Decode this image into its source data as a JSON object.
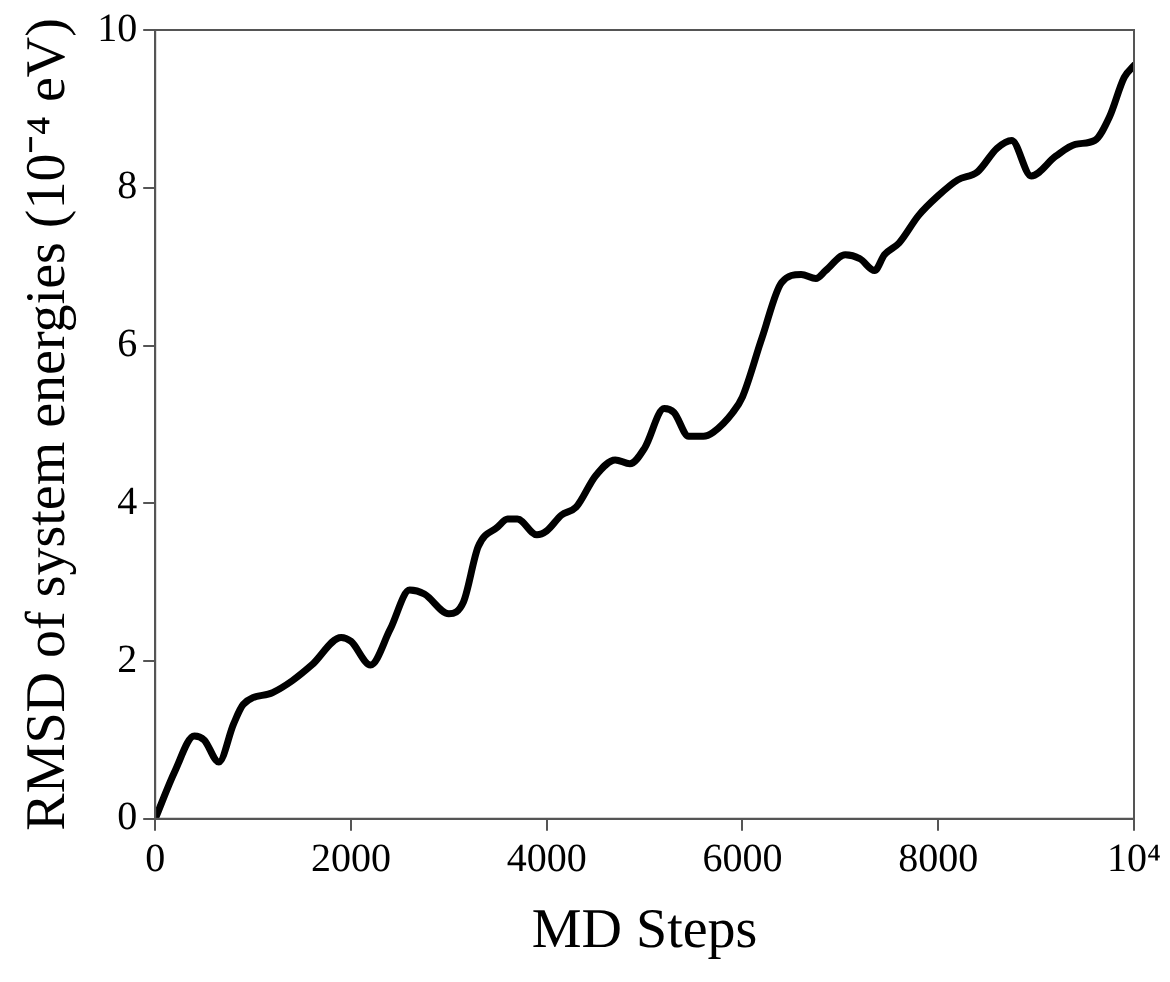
{
  "chart_data": {
    "type": "line",
    "xlabel": "MD Steps",
    "ylabel": "RMSD of system energies (10⁻⁴ eV)",
    "x": [
      0,
      200,
      400,
      500,
      650,
      800,
      900,
      1200,
      1400,
      1600,
      1900,
      2000,
      2200,
      2400,
      2600,
      2750,
      3000,
      3150,
      3300,
      3500,
      3600,
      3700,
      3900,
      4000,
      4150,
      4300,
      4500,
      4700,
      4850,
      5000,
      5200,
      5300,
      5450,
      5600,
      5700,
      5900,
      6000,
      6200,
      6400,
      6600,
      6750,
      6850,
      7050,
      7200,
      7350,
      7450,
      7600,
      7800,
      8000,
      8200,
      8400,
      8600,
      8750,
      8950,
      9200,
      9400,
      9600,
      9750,
      9900,
      10000
    ],
    "series": [
      {
        "color": "#000000",
        "values": [
          0,
          0.6,
          1.05,
          1.0,
          0.72,
          1.2,
          1.45,
          1.6,
          1.75,
          1.95,
          2.3,
          2.25,
          1.95,
          2.4,
          2.9,
          2.85,
          2.6,
          2.75,
          3.45,
          3.7,
          3.8,
          3.8,
          3.6,
          3.65,
          3.85,
          3.95,
          4.35,
          4.55,
          4.5,
          4.7,
          5.2,
          5.15,
          4.85,
          4.85,
          4.9,
          5.15,
          5.35,
          6.1,
          6.8,
          6.9,
          6.85,
          6.95,
          7.15,
          7.1,
          6.95,
          7.15,
          7.3,
          7.65,
          7.9,
          8.1,
          8.2,
          8.5,
          8.6,
          8.15,
          8.4,
          8.55,
          8.6,
          8.9,
          9.4,
          9.55
        ]
      }
    ],
    "xlim": [
      0,
      10000
    ],
    "xticks": [
      0,
      2000,
      4000,
      6000,
      8000,
      {
        "value": 10000,
        "label": "10⁴"
      }
    ],
    "ylim": [
      0,
      10
    ],
    "yticks": [
      0,
      2,
      4,
      6,
      8,
      10
    ],
    "grid": false,
    "legend": false,
    "marker": "none",
    "line_style": "solid"
  }
}
